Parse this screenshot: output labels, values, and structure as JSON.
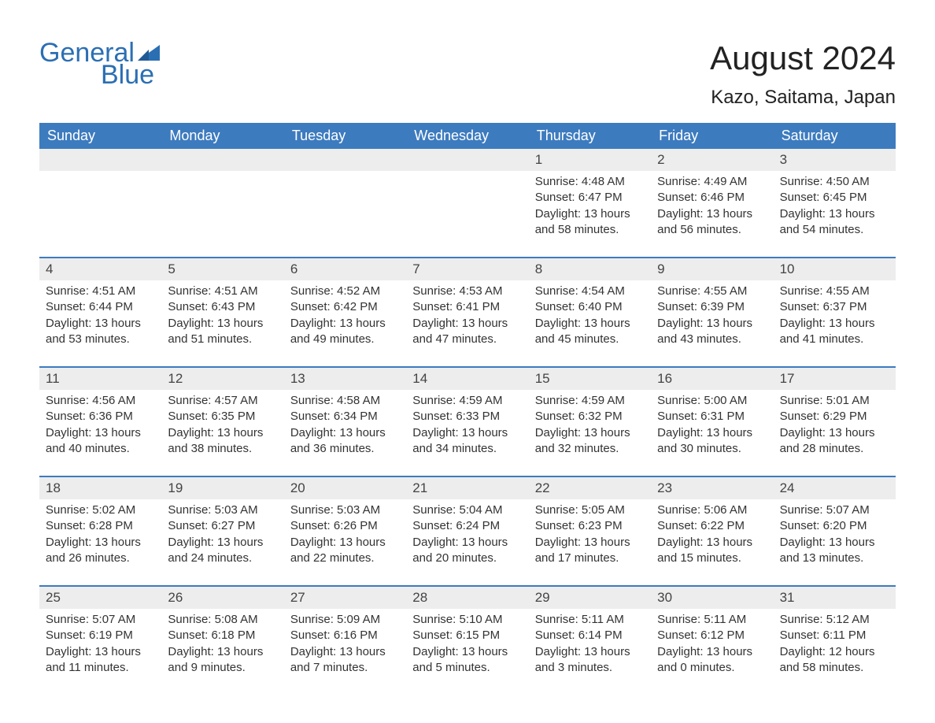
{
  "logo": {
    "general": "General",
    "blue": "Blue",
    "flag_color": "#2b6fb3"
  },
  "header": {
    "title": "August 2024",
    "location": "Kazo, Saitama, Japan",
    "title_color": "#222222",
    "title_fontsize": 42,
    "location_fontsize": 24
  },
  "calendar": {
    "header_bg": "#3d7bbf",
    "header_fg": "#ffffff",
    "daynum_bg": "#ededed",
    "week_border_color": "#3d7bbf",
    "day_names": [
      "Sunday",
      "Monday",
      "Tuesday",
      "Wednesday",
      "Thursday",
      "Friday",
      "Saturday"
    ],
    "weeks": [
      [
        {
          "empty": true
        },
        {
          "empty": true
        },
        {
          "empty": true
        },
        {
          "empty": true
        },
        {
          "day": "1",
          "sunrise": "Sunrise: 4:48 AM",
          "sunset": "Sunset: 6:47 PM",
          "dl1": "Daylight: 13 hours",
          "dl2": "and 58 minutes."
        },
        {
          "day": "2",
          "sunrise": "Sunrise: 4:49 AM",
          "sunset": "Sunset: 6:46 PM",
          "dl1": "Daylight: 13 hours",
          "dl2": "and 56 minutes."
        },
        {
          "day": "3",
          "sunrise": "Sunrise: 4:50 AM",
          "sunset": "Sunset: 6:45 PM",
          "dl1": "Daylight: 13 hours",
          "dl2": "and 54 minutes."
        }
      ],
      [
        {
          "day": "4",
          "sunrise": "Sunrise: 4:51 AM",
          "sunset": "Sunset: 6:44 PM",
          "dl1": "Daylight: 13 hours",
          "dl2": "and 53 minutes."
        },
        {
          "day": "5",
          "sunrise": "Sunrise: 4:51 AM",
          "sunset": "Sunset: 6:43 PM",
          "dl1": "Daylight: 13 hours",
          "dl2": "and 51 minutes."
        },
        {
          "day": "6",
          "sunrise": "Sunrise: 4:52 AM",
          "sunset": "Sunset: 6:42 PM",
          "dl1": "Daylight: 13 hours",
          "dl2": "and 49 minutes."
        },
        {
          "day": "7",
          "sunrise": "Sunrise: 4:53 AM",
          "sunset": "Sunset: 6:41 PM",
          "dl1": "Daylight: 13 hours",
          "dl2": "and 47 minutes."
        },
        {
          "day": "8",
          "sunrise": "Sunrise: 4:54 AM",
          "sunset": "Sunset: 6:40 PM",
          "dl1": "Daylight: 13 hours",
          "dl2": "and 45 minutes."
        },
        {
          "day": "9",
          "sunrise": "Sunrise: 4:55 AM",
          "sunset": "Sunset: 6:39 PM",
          "dl1": "Daylight: 13 hours",
          "dl2": "and 43 minutes."
        },
        {
          "day": "10",
          "sunrise": "Sunrise: 4:55 AM",
          "sunset": "Sunset: 6:37 PM",
          "dl1": "Daylight: 13 hours",
          "dl2": "and 41 minutes."
        }
      ],
      [
        {
          "day": "11",
          "sunrise": "Sunrise: 4:56 AM",
          "sunset": "Sunset: 6:36 PM",
          "dl1": "Daylight: 13 hours",
          "dl2": "and 40 minutes."
        },
        {
          "day": "12",
          "sunrise": "Sunrise: 4:57 AM",
          "sunset": "Sunset: 6:35 PM",
          "dl1": "Daylight: 13 hours",
          "dl2": "and 38 minutes."
        },
        {
          "day": "13",
          "sunrise": "Sunrise: 4:58 AM",
          "sunset": "Sunset: 6:34 PM",
          "dl1": "Daylight: 13 hours",
          "dl2": "and 36 minutes."
        },
        {
          "day": "14",
          "sunrise": "Sunrise: 4:59 AM",
          "sunset": "Sunset: 6:33 PM",
          "dl1": "Daylight: 13 hours",
          "dl2": "and 34 minutes."
        },
        {
          "day": "15",
          "sunrise": "Sunrise: 4:59 AM",
          "sunset": "Sunset: 6:32 PM",
          "dl1": "Daylight: 13 hours",
          "dl2": "and 32 minutes."
        },
        {
          "day": "16",
          "sunrise": "Sunrise: 5:00 AM",
          "sunset": "Sunset: 6:31 PM",
          "dl1": "Daylight: 13 hours",
          "dl2": "and 30 minutes."
        },
        {
          "day": "17",
          "sunrise": "Sunrise: 5:01 AM",
          "sunset": "Sunset: 6:29 PM",
          "dl1": "Daylight: 13 hours",
          "dl2": "and 28 minutes."
        }
      ],
      [
        {
          "day": "18",
          "sunrise": "Sunrise: 5:02 AM",
          "sunset": "Sunset: 6:28 PM",
          "dl1": "Daylight: 13 hours",
          "dl2": "and 26 minutes."
        },
        {
          "day": "19",
          "sunrise": "Sunrise: 5:03 AM",
          "sunset": "Sunset: 6:27 PM",
          "dl1": "Daylight: 13 hours",
          "dl2": "and 24 minutes."
        },
        {
          "day": "20",
          "sunrise": "Sunrise: 5:03 AM",
          "sunset": "Sunset: 6:26 PM",
          "dl1": "Daylight: 13 hours",
          "dl2": "and 22 minutes."
        },
        {
          "day": "21",
          "sunrise": "Sunrise: 5:04 AM",
          "sunset": "Sunset: 6:24 PM",
          "dl1": "Daylight: 13 hours",
          "dl2": "and 20 minutes."
        },
        {
          "day": "22",
          "sunrise": "Sunrise: 5:05 AM",
          "sunset": "Sunset: 6:23 PM",
          "dl1": "Daylight: 13 hours",
          "dl2": "and 17 minutes."
        },
        {
          "day": "23",
          "sunrise": "Sunrise: 5:06 AM",
          "sunset": "Sunset: 6:22 PM",
          "dl1": "Daylight: 13 hours",
          "dl2": "and 15 minutes."
        },
        {
          "day": "24",
          "sunrise": "Sunrise: 5:07 AM",
          "sunset": "Sunset: 6:20 PM",
          "dl1": "Daylight: 13 hours",
          "dl2": "and 13 minutes."
        }
      ],
      [
        {
          "day": "25",
          "sunrise": "Sunrise: 5:07 AM",
          "sunset": "Sunset: 6:19 PM",
          "dl1": "Daylight: 13 hours",
          "dl2": "and 11 minutes."
        },
        {
          "day": "26",
          "sunrise": "Sunrise: 5:08 AM",
          "sunset": "Sunset: 6:18 PM",
          "dl1": "Daylight: 13 hours",
          "dl2": "and 9 minutes."
        },
        {
          "day": "27",
          "sunrise": "Sunrise: 5:09 AM",
          "sunset": "Sunset: 6:16 PM",
          "dl1": "Daylight: 13 hours",
          "dl2": "and 7 minutes."
        },
        {
          "day": "28",
          "sunrise": "Sunrise: 5:10 AM",
          "sunset": "Sunset: 6:15 PM",
          "dl1": "Daylight: 13 hours",
          "dl2": "and 5 minutes."
        },
        {
          "day": "29",
          "sunrise": "Sunrise: 5:11 AM",
          "sunset": "Sunset: 6:14 PM",
          "dl1": "Daylight: 13 hours",
          "dl2": "and 3 minutes."
        },
        {
          "day": "30",
          "sunrise": "Sunrise: 5:11 AM",
          "sunset": "Sunset: 6:12 PM",
          "dl1": "Daylight: 13 hours",
          "dl2": "and 0 minutes."
        },
        {
          "day": "31",
          "sunrise": "Sunrise: 5:12 AM",
          "sunset": "Sunset: 6:11 PM",
          "dl1": "Daylight: 12 hours",
          "dl2": "and 58 minutes."
        }
      ]
    ]
  }
}
